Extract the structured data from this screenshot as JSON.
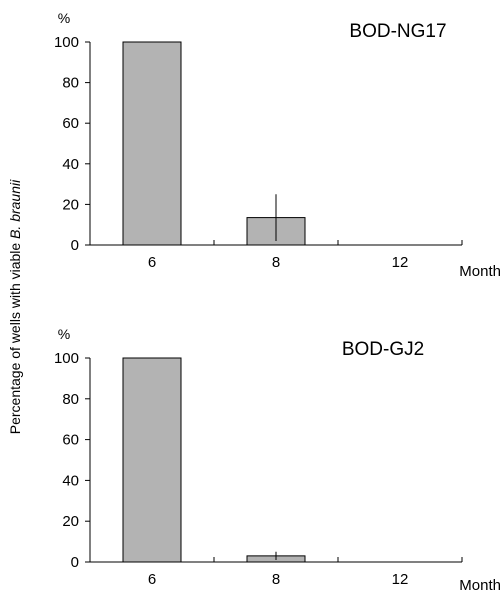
{
  "chart_data": [
    {
      "type": "bar",
      "title": "BOD-NG17",
      "categories": [
        "6",
        "8",
        "12"
      ],
      "values": [
        100,
        13.5,
        0
      ],
      "error": [
        0,
        11.5,
        0
      ],
      "ylim": [
        0,
        100
      ],
      "yticks": [
        "0",
        "20",
        "40",
        "60",
        "80",
        "100"
      ],
      "yunit": "%",
      "xunit": "Month",
      "bar_color": "#b3b3b3",
      "grid": false
    },
    {
      "type": "bar",
      "title": "BOD-GJ2",
      "categories": [
        "6",
        "8",
        "12"
      ],
      "values": [
        100,
        3,
        0
      ],
      "error": [
        0,
        2,
        0
      ],
      "ylim": [
        0,
        100
      ],
      "yticks": [
        "0",
        "20",
        "40",
        "60",
        "80",
        "100"
      ],
      "yunit": "%",
      "xunit": "Month",
      "bar_color": "#b3b3b3",
      "grid": false
    }
  ],
  "ylabel_prefix": "Percentage of wells with viable ",
  "ylabel_species": "B. braunii"
}
